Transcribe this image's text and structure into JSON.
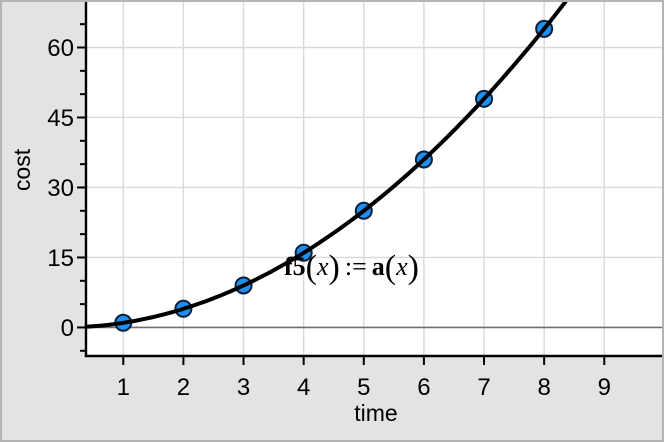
{
  "window": {
    "background": "#e3e3e3",
    "frame_border": "#b4b4b4",
    "plot_background": "#ffffff"
  },
  "chart_data": {
    "type": "scatter",
    "title": "",
    "xlabel": "time",
    "ylabel": "cost",
    "points": [
      [
        1,
        1
      ],
      [
        2,
        4
      ],
      [
        3,
        9
      ],
      [
        4,
        16
      ],
      [
        5,
        25
      ],
      [
        6,
        36
      ],
      [
        7,
        49
      ],
      [
        8,
        64
      ]
    ],
    "fit_curve": {
      "label": "f5(x) := a(x)",
      "model": "y = x^2",
      "js": "v*v",
      "x_range": [
        0.386,
        8.352
      ]
    },
    "x_ticks": [
      1,
      2,
      3,
      4,
      5,
      6,
      7,
      8,
      9
    ],
    "y_ticks": [
      0,
      15,
      30,
      45,
      60
    ],
    "y_minor_tick_step": 5,
    "y_minor_tick_range": [
      -5,
      65
    ],
    "xlim": [
      0.38,
      9.96
    ],
    "ylim": [
      -6.33,
      69.75
    ],
    "grid": true,
    "legend": "none"
  },
  "annotation": {
    "lhs_name": "f5",
    "paren_open": "(",
    "arg": "x",
    "paren_close": ")",
    "assign_op": ":=",
    "rhs_name": "a"
  },
  "colors": {
    "point_fill": "#1f8fef",
    "point_stroke": "#0a1e38",
    "curve": "#000000",
    "gridline": "#d9d9d9",
    "zero_line": "#6f6f6f",
    "axis": "#000000",
    "tick": "#000000",
    "text": "#000000"
  }
}
